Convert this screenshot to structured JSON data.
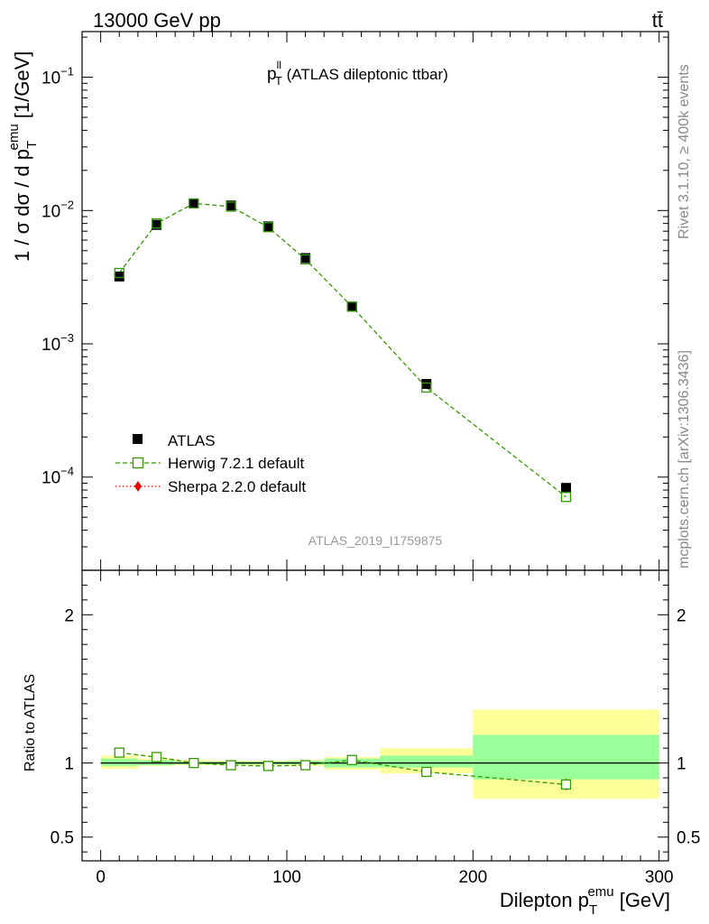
{
  "header": {
    "left": "13000 GeV pp",
    "right": "tt̄"
  },
  "side": {
    "rivet": "Rivet 3.1.10, ≥ 400k events",
    "mcplots": "mcplots.cern.ch [arXiv:1306.3436]"
  },
  "chart_data": {
    "type": "scatter",
    "title_main": "p",
    "title_sup": "ll",
    "title_sub": "T",
    "title_rest": " (ATLAS dileptonic ttbar)",
    "analysis_tag": "ATLAS_2019_I1759875",
    "ylabel_top": {
      "main": "1 / σ  dσ / d p",
      "sub": "T",
      "sup": "emu",
      "tail": " [1/GeV]"
    },
    "ylabel_bottom": "Ratio to ATLAS",
    "xlabel": {
      "main": "Dilepton p",
      "sub": "T",
      "sup": "emu",
      "tail": " [GeV]"
    },
    "xlim": [
      -10,
      305
    ],
    "ylim_top": [
      2e-05,
      0.22
    ],
    "ylim_bottom": [
      0.34,
      2.3
    ],
    "yscale_top": "log",
    "x_ticks": [
      0,
      100,
      200,
      300
    ],
    "x_tick_labels": [
      "0",
      "100",
      "200",
      "300"
    ],
    "y_ticks_top": [
      0.0001,
      0.001,
      0.01,
      0.1
    ],
    "y_tick_labels_top": [
      {
        "base": "10",
        "exp": "−4"
      },
      {
        "base": "10",
        "exp": "−3"
      },
      {
        "base": "10",
        "exp": "−2"
      },
      {
        "base": "10",
        "exp": "−1"
      }
    ],
    "y_ticks_bottom": [
      0.5,
      1,
      2
    ],
    "y_tick_labels_bottom": [
      "0.5",
      "1",
      "2"
    ],
    "legend_position": "lower-left",
    "bin_edges": [
      0,
      20,
      40,
      60,
      80,
      100,
      120,
      150,
      200,
      300
    ],
    "series": [
      {
        "name": "ATLAS",
        "color": "#000000",
        "marker": "filled-square",
        "x": [
          10,
          30,
          50,
          70,
          90,
          110,
          135,
          175,
          250
        ],
        "y": [
          0.0032,
          0.0078,
          0.0113,
          0.0109,
          0.0076,
          0.0044,
          0.0019,
          0.0005,
          8.3e-05
        ],
        "ratio_band_inner": [
          [
            0.98,
            1.03
          ],
          [
            0.985,
            1.02
          ],
          [
            0.99,
            1.01
          ],
          [
            0.99,
            1.01
          ],
          [
            0.99,
            1.01
          ],
          [
            0.99,
            1.015
          ],
          [
            0.97,
            1.03
          ],
          [
            0.97,
            1.05
          ],
          [
            0.89,
            1.19
          ]
        ],
        "ratio_band_outer": [
          [
            0.96,
            1.05
          ],
          [
            0.98,
            1.03
          ],
          [
            0.985,
            1.02
          ],
          [
            0.985,
            1.015
          ],
          [
            0.985,
            1.015
          ],
          [
            0.98,
            1.02
          ],
          [
            0.955,
            1.04
          ],
          [
            0.93,
            1.1
          ],
          [
            0.76,
            1.36
          ]
        ]
      },
      {
        "name": "Herwig 7.2.1 default",
        "color": "#339900",
        "marker": "open-square",
        "line": "dashed",
        "x": [
          10,
          30,
          50,
          70,
          90,
          110,
          135,
          175,
          250
        ],
        "y": [
          0.0034,
          0.008,
          0.0113,
          0.0107,
          0.0075,
          0.0043,
          0.0019,
          0.00047,
          7.1e-05
        ],
        "ratio": [
          1.07,
          1.04,
          1.0,
          0.985,
          0.98,
          0.985,
          1.02,
          0.94,
          0.855
        ],
        "ratio_err": [
          0.01,
          0.01,
          0.01,
          0.01,
          0.01,
          0.01,
          0.01,
          0.015,
          0.04
        ]
      },
      {
        "name": "Sherpa 2.2.0 default",
        "color": "#ee0000",
        "marker": "filled-diamond",
        "line": "dotted",
        "x": [],
        "y": []
      }
    ]
  }
}
